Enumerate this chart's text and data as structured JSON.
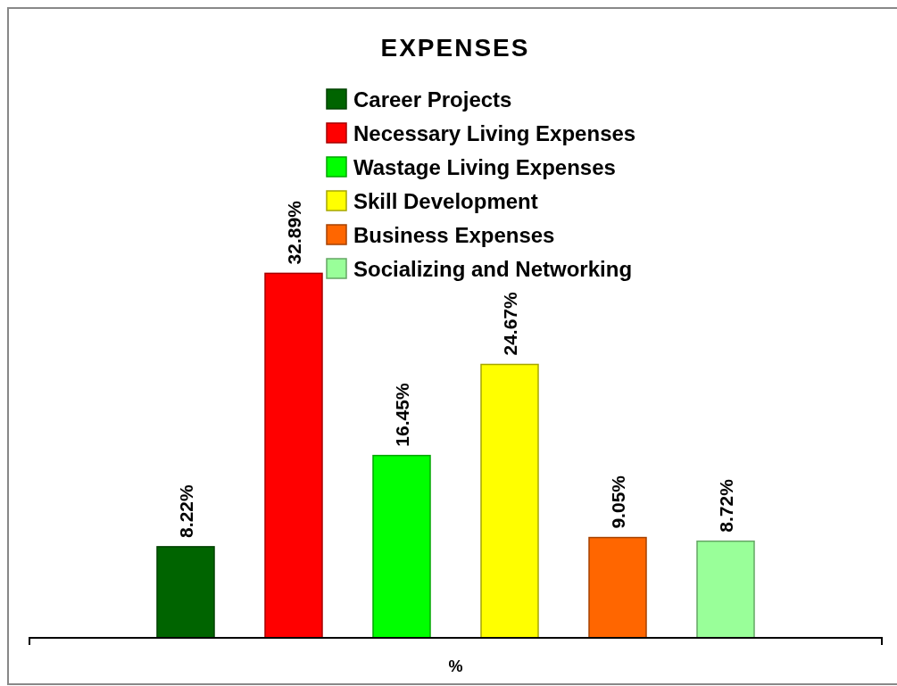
{
  "chart_data": {
    "type": "bar",
    "title": "EXPENSES",
    "xlabel": "%",
    "categories": [
      null,
      null,
      null,
      null,
      null,
      null
    ],
    "stacked": true,
    "series": [
      {
        "name": "Career Projects",
        "color": "#006400",
        "values": [
          8.22,
          null,
          null,
          null,
          null,
          null
        ],
        "value_labels": [
          "8.22%",
          null,
          null,
          null,
          null,
          null
        ]
      },
      {
        "name": "Necessary Living Expenses",
        "color": "#ff0000",
        "values": [
          null,
          32.89,
          null,
          null,
          null,
          null
        ],
        "value_labels": [
          null,
          "32.89%",
          null,
          null,
          null,
          null
        ]
      },
      {
        "name": "Wastage Living Expenses",
        "color": "#00ff00",
        "values": [
          null,
          null,
          16.45,
          null,
          null,
          null
        ],
        "value_labels": [
          null,
          null,
          "16.45%",
          null,
          null,
          null
        ]
      },
      {
        "name": "Skill Development",
        "color": "#ffff00",
        "values": [
          null,
          null,
          null,
          24.67,
          null,
          null
        ],
        "value_labels": [
          null,
          null,
          null,
          "24.67%",
          null,
          null
        ]
      },
      {
        "name": "Business Expenses",
        "color": "#ff6600",
        "values": [
          null,
          null,
          null,
          null,
          9.05,
          null
        ],
        "value_labels": [
          null,
          null,
          null,
          null,
          "9.05%",
          null
        ]
      },
      {
        "name": "Socializing and Networking",
        "color": "#99ff99",
        "values": [
          null,
          null,
          null,
          null,
          null,
          8.72
        ],
        "value_labels": [
          null,
          null,
          null,
          null,
          null,
          "8.72%"
        ]
      }
    ],
    "legend": "top"
  }
}
